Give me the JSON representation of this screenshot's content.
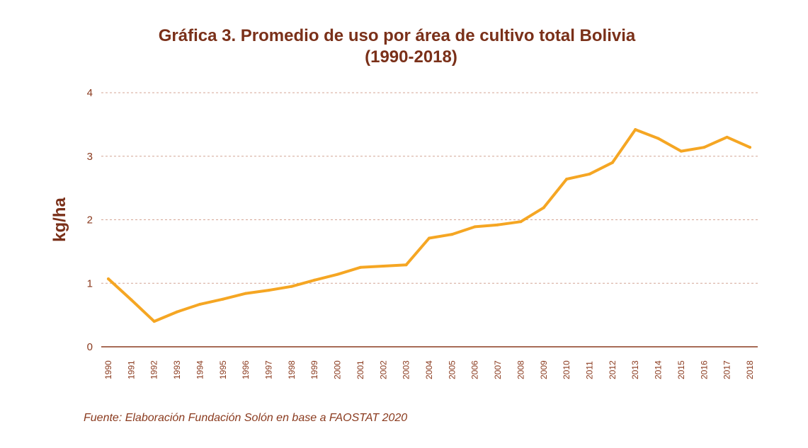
{
  "chart_data": {
    "type": "line",
    "title": "Gráfica 3.  Promedio de uso por área de cultivo total Bolivia",
    "subtitle": "(1990-2018)",
    "xlabel": "",
    "ylabel": "kg/ha",
    "ylim": [
      0,
      4
    ],
    "yticks": [
      "0",
      "1",
      "2",
      "3",
      "4"
    ],
    "grid": true,
    "x": [
      "1990",
      "1991",
      "1992",
      "1993",
      "1994",
      "1995",
      "1996",
      "1997",
      "1998",
      "1999",
      "2000",
      "2001",
      "2002",
      "2003",
      "2004",
      "2005",
      "2006",
      "2007",
      "2008",
      "2009",
      "2010",
      "2011",
      "2012",
      "2013",
      "2014",
      "2015",
      "2016",
      "2017",
      "2018"
    ],
    "series": [
      {
        "name": "Promedio de uso por área de cultivo",
        "color": "#f5a623",
        "values": [
          1.07,
          0.74,
          0.4,
          0.55,
          0.67,
          0.75,
          0.84,
          0.89,
          0.95,
          1.05,
          1.14,
          1.25,
          1.27,
          1.29,
          1.71,
          1.77,
          1.89,
          1.92,
          1.97,
          2.19,
          2.64,
          2.72,
          2.9,
          3.42,
          3.28,
          3.08,
          3.14,
          3.3,
          3.14
        ]
      }
    ],
    "source": "Fuente: Elaboración Fundación Solón en base a FAOSTAT 2020"
  },
  "colors": {
    "title": "#7a3019",
    "axis": "#8a3a1e",
    "grid": "#d4a595",
    "line": "#f5a623"
  }
}
